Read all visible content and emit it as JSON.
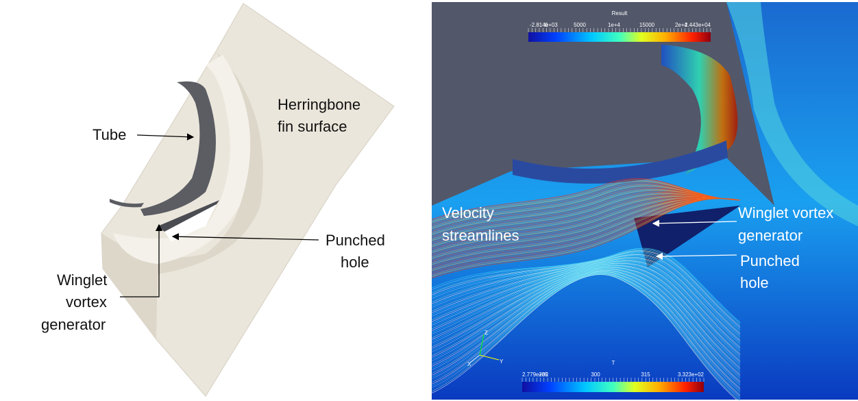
{
  "left_panel": {
    "herringbone_label": [
      "Herringbone",
      "fin surface"
    ],
    "tube_label": "Tube",
    "punched_hole_label": [
      "Punched",
      "hole"
    ],
    "winglet_label": [
      "Winglet",
      "vortex",
      "generator"
    ]
  },
  "right_panel": {
    "result_bar": {
      "title": "Result",
      "ticks": [
        "-2.814e+03",
        "0",
        "5000",
        "1e+4",
        "15000",
        "2e+4",
        "2.443e+04"
      ]
    },
    "temperature_bar": {
      "title": "T",
      "ticks": [
        "2.779e+02",
        "285",
        "300",
        "315",
        "3.323e+02"
      ]
    },
    "streamlines_label": [
      "Velocity",
      "streamlines"
    ],
    "winglet_label": [
      "Winglet vortex",
      "generator"
    ],
    "punched_hole_label": [
      "Punched",
      "hole"
    ],
    "axes": [
      "X",
      "Y",
      "Z"
    ]
  }
}
